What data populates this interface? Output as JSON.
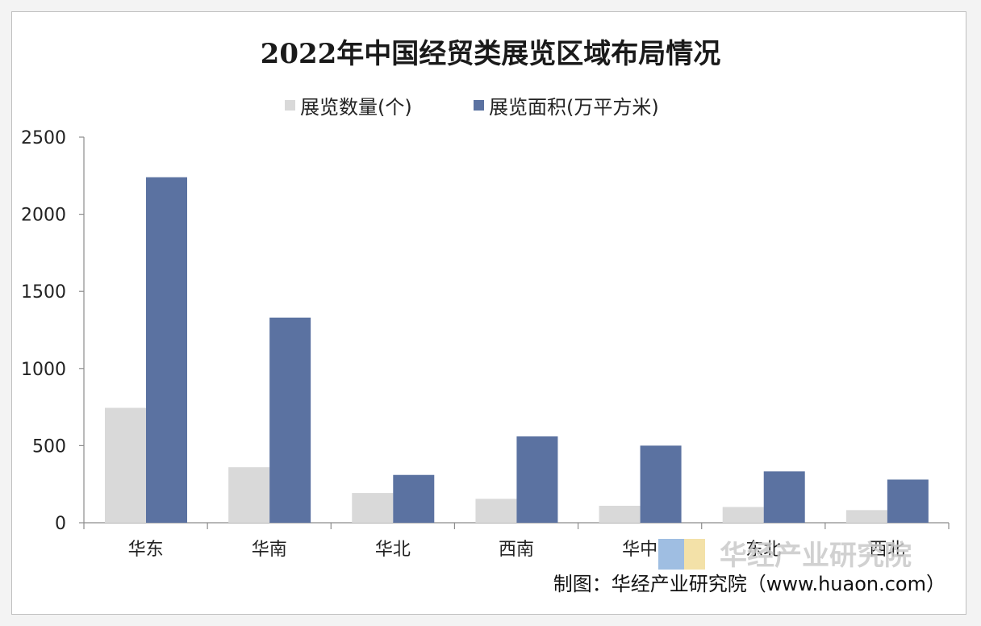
{
  "chart_data": {
    "type": "bar",
    "title": "2022年中国经贸类展览区域布局情况",
    "categories": [
      "华东",
      "华南",
      "华北",
      "西南",
      "华中",
      "东北",
      "西北"
    ],
    "series": [
      {
        "name": "展览数量(个)",
        "values": [
          745,
          360,
          193,
          155,
          110,
          102,
          82
        ],
        "color": "#d9d9d9"
      },
      {
        "name": "展览面积(万平方米)",
        "values": [
          2240,
          1330,
          310,
          560,
          500,
          333,
          280
        ],
        "color": "#5b72a1"
      }
    ],
    "yticks": [
      "0",
      "500",
      "1000",
      "1500",
      "2000",
      "2500"
    ],
    "ylim": [
      0,
      2500
    ],
    "xlabel": "",
    "ylabel": "",
    "legend_position": "top-center",
    "grid": false
  },
  "watermark": "华经产业研究院",
  "source": "制图：华经产业研究院（www.huaon.com）",
  "colors": {
    "watermark_logo_blue": "#8fb3de",
    "watermark_logo_yellow": "#f1dc9a"
  }
}
